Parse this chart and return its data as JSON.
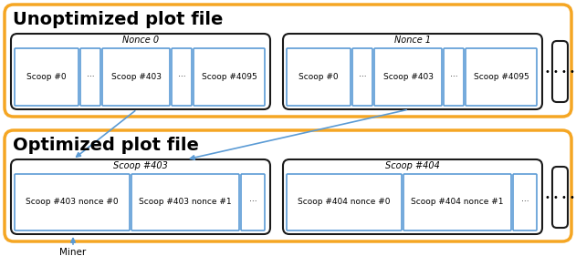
{
  "fig_width": 6.31,
  "fig_height": 2.81,
  "dpi": 100,
  "bg_color": "#ffffff",
  "orange": "#f5a623",
  "black": "#1a1a1a",
  "blue": "#5b9bd5",
  "blue_arrow": "#5b9bd5",
  "unopt_title": "Unoptimized plot file",
  "opt_title": "Optimized plot file",
  "miner_label": "Miner",
  "unopt_nonce0_cells": [
    "Scoop #0",
    "···",
    "Scoop #403",
    "···",
    "Scoop #4095"
  ],
  "unopt_nonce1_cells": [
    "Scoop #0",
    "···",
    "Scoop #403",
    "···",
    "Scoop #4095"
  ],
  "opt_scoop403_cells": [
    "Scoop #403 nonce #0",
    "Scoop #403 nonce #1",
    "···"
  ],
  "opt_scoop404_cells": [
    "Scoop #404 nonce #0",
    "Scoop #404 nonce #1",
    "···"
  ],
  "nonce0_label": "Nonce 0",
  "nonce1_label": "Nonce 1",
  "scoop403_label": "Scoop #403",
  "scoop404_label": "Scoop #404"
}
